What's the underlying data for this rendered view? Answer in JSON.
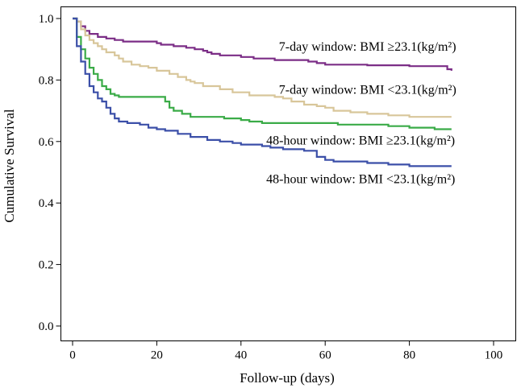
{
  "chart_data": {
    "type": "line",
    "subtype": "kaplan-meier step",
    "title": "",
    "xlabel": "Follow-up (days)",
    "ylabel": "Cumulative Survival",
    "xlim": [
      0,
      100
    ],
    "ylim": [
      0,
      1
    ],
    "x_ticks": [
      0,
      20,
      40,
      60,
      80,
      100
    ],
    "y_ticks": [
      0.0,
      0.2,
      0.4,
      0.6,
      0.8,
      1.0
    ],
    "x_tick_labels": [
      "0",
      "20",
      "40",
      "60",
      "80",
      "100"
    ],
    "y_tick_labels": [
      "0.0",
      "0.2",
      "0.4",
      "0.6",
      "0.8",
      "1.0"
    ],
    "grid": false,
    "series": [
      {
        "name": "7-day window: BMI ≥23.1(kg/m²)",
        "color": "#7b2d86",
        "label_anchor": [
          49,
          0.895
        ],
        "x": [
          0,
          1,
          2,
          3,
          4,
          6,
          8,
          10,
          12,
          20,
          21,
          24,
          27,
          29,
          31,
          32,
          33,
          35,
          40,
          43,
          48,
          56,
          58,
          60,
          63,
          70,
          80,
          88,
          89,
          90
        ],
        "y": [
          1.0,
          0.99,
          0.975,
          0.96,
          0.95,
          0.94,
          0.935,
          0.93,
          0.925,
          0.92,
          0.915,
          0.91,
          0.905,
          0.9,
          0.895,
          0.89,
          0.885,
          0.88,
          0.875,
          0.87,
          0.865,
          0.86,
          0.855,
          0.85,
          0.85,
          0.848,
          0.845,
          0.845,
          0.835,
          0.83
        ]
      },
      {
        "name": "7-day window: BMI <23.1(kg/m²)",
        "color": "#d8c69a",
        "label_anchor": [
          49,
          0.755
        ],
        "x": [
          0,
          1,
          2,
          3,
          4,
          5,
          6,
          7,
          8,
          10,
          11,
          12,
          14,
          16,
          18,
          20,
          23,
          25,
          27,
          28,
          29,
          31,
          35,
          38,
          42,
          48,
          50,
          52,
          55,
          58,
          60,
          62,
          66,
          70,
          75,
          80,
          90
        ],
        "y": [
          1.0,
          0.99,
          0.965,
          0.945,
          0.93,
          0.92,
          0.91,
          0.9,
          0.89,
          0.88,
          0.87,
          0.86,
          0.85,
          0.845,
          0.84,
          0.83,
          0.82,
          0.81,
          0.8,
          0.795,
          0.79,
          0.78,
          0.77,
          0.76,
          0.75,
          0.745,
          0.74,
          0.73,
          0.72,
          0.715,
          0.71,
          0.7,
          0.695,
          0.69,
          0.685,
          0.68,
          0.68
        ]
      },
      {
        "name": "48-hour window: BMI ≥23.1(kg/m²)",
        "color": "#3aab47",
        "label_anchor": [
          46,
          0.59
        ],
        "x": [
          0,
          1,
          2,
          3,
          4,
          5,
          6,
          7,
          8,
          9,
          10,
          11,
          22,
          23,
          24,
          26,
          28,
          30,
          36,
          40,
          42,
          45,
          63,
          64,
          75,
          80,
          86,
          90
        ],
        "y": [
          1.0,
          0.94,
          0.9,
          0.87,
          0.84,
          0.82,
          0.8,
          0.78,
          0.77,
          0.755,
          0.75,
          0.745,
          0.73,
          0.71,
          0.7,
          0.69,
          0.68,
          0.68,
          0.675,
          0.67,
          0.665,
          0.66,
          0.655,
          0.655,
          0.65,
          0.645,
          0.64,
          0.64
        ]
      },
      {
        "name": "48-hour window: BMI <23.1(kg/m²)",
        "color": "#3b4fa8",
        "label_anchor": [
          46,
          0.465
        ],
        "x": [
          0,
          1,
          2,
          3,
          4,
          5,
          6,
          7,
          8,
          9,
          10,
          11,
          13,
          16,
          18,
          20,
          22,
          25,
          28,
          32,
          35,
          38,
          40,
          45,
          47,
          50,
          55,
          58,
          60,
          62,
          70,
          75,
          80,
          90
        ],
        "y": [
          1.0,
          0.91,
          0.86,
          0.82,
          0.78,
          0.76,
          0.74,
          0.73,
          0.71,
          0.69,
          0.675,
          0.665,
          0.66,
          0.655,
          0.645,
          0.64,
          0.635,
          0.625,
          0.615,
          0.605,
          0.6,
          0.595,
          0.59,
          0.585,
          0.58,
          0.575,
          0.57,
          0.55,
          0.54,
          0.535,
          0.53,
          0.525,
          0.52,
          0.52
        ]
      }
    ]
  }
}
